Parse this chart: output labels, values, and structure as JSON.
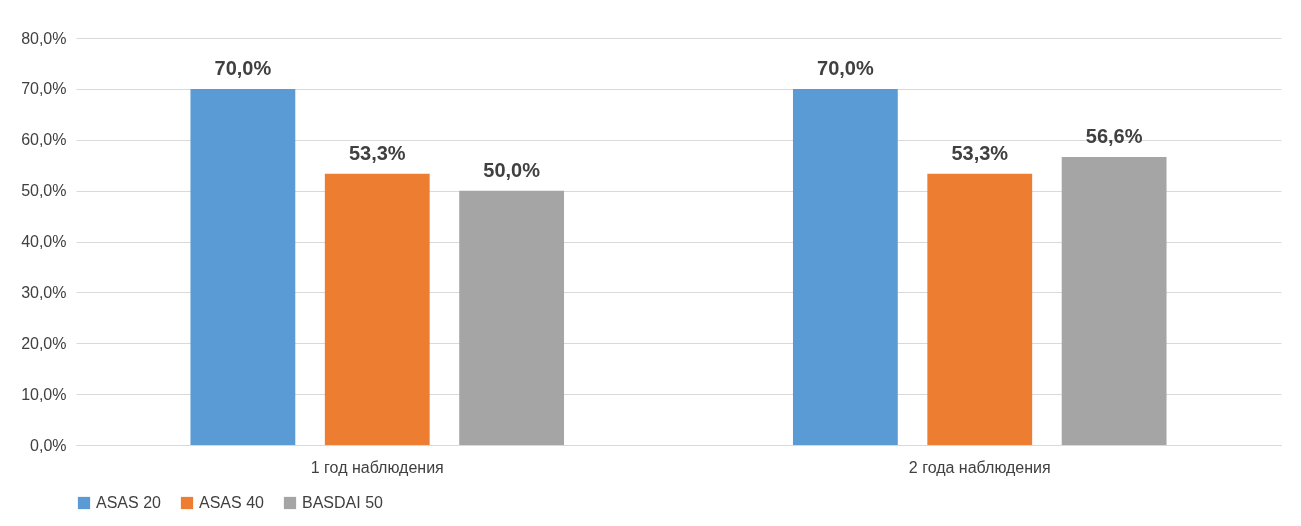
{
  "chart_data": {
    "type": "bar",
    "categories": [
      "1 год наблюдения",
      "2 года наблюдения"
    ],
    "series": [
      {
        "name": "ASAS 20",
        "color": "#5b9bd5",
        "values": [
          70.0,
          70.0
        ],
        "value_labels": [
          "70,0%",
          "70,0%"
        ]
      },
      {
        "name": "ASAS 40",
        "color": "#ed7d31",
        "values": [
          53.3,
          53.3
        ],
        "value_labels": [
          "53,3%",
          "53,3%"
        ]
      },
      {
        "name": "BASDAI 50",
        "color": "#a5a5a5",
        "values": [
          50.0,
          56.6
        ],
        "value_labels": [
          "50,0%",
          "56,6%"
        ]
      }
    ],
    "ylim": [
      0,
      80
    ],
    "yticks": [
      {
        "value": 0,
        "label": "0,0%"
      },
      {
        "value": 10,
        "label": "10,0%"
      },
      {
        "value": 20,
        "label": "20,0%"
      },
      {
        "value": 30,
        "label": "30,0%"
      },
      {
        "value": 40,
        "label": "40,0%"
      },
      {
        "value": 50,
        "label": "50,0%"
      },
      {
        "value": 60,
        "label": "60,0%"
      },
      {
        "value": 70,
        "label": "70,0%"
      },
      {
        "value": 80,
        "label": "80,0%"
      }
    ],
    "grid": "y",
    "legend": "bottom"
  }
}
